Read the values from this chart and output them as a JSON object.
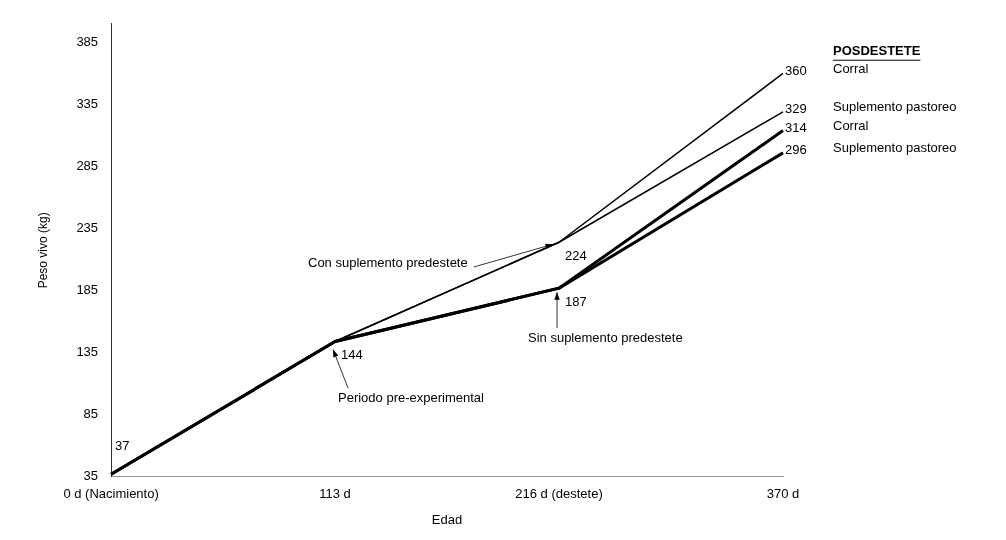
{
  "chart_data": {
    "type": "line",
    "xlabel": "Edad",
    "ylabel": "Peso vivo (kg)",
    "legend_title": "POSDESTETE",
    "categories": [
      "0 d (Nacimiento)",
      "113 d",
      "216 d (destete)",
      "370 d"
    ],
    "ylim": [
      35,
      400
    ],
    "yticks": [
      35,
      85,
      135,
      185,
      235,
      285,
      335,
      385
    ],
    "grid": false,
    "legend": false,
    "marker": "none",
    "line_style": "solid",
    "series": [
      {
        "name": "Corral",
        "color": "#000000",
        "values": [
          37,
          144,
          224,
          360
        ],
        "value_labels": [
          "37",
          "144",
          "224",
          "360"
        ]
      },
      {
        "name": "Suplemento pastoreo",
        "color": "#000000",
        "values": [
          37,
          144,
          224,
          329
        ],
        "value_labels": [
          null,
          null,
          null,
          "329"
        ]
      },
      {
        "name": "Corral",
        "color": "#000000",
        "values": [
          37,
          144,
          187,
          314
        ],
        "value_labels": [
          null,
          null,
          "187",
          "314"
        ]
      },
      {
        "name": "Suplemento pastoreo",
        "color": "#000000",
        "values": [
          37,
          144,
          187,
          296
        ],
        "value_labels": [
          null,
          null,
          null,
          "296"
        ]
      }
    ],
    "annotations": [
      {
        "text": "Con suplemento predestete",
        "x": "216 d (destete)",
        "y": 224
      },
      {
        "text": "Sin suplemento predestete",
        "x": "216 d (destete)",
        "y": 187
      },
      {
        "text": "Periodo pre-experimental",
        "x": "113 d",
        "y": 144
      }
    ]
  }
}
